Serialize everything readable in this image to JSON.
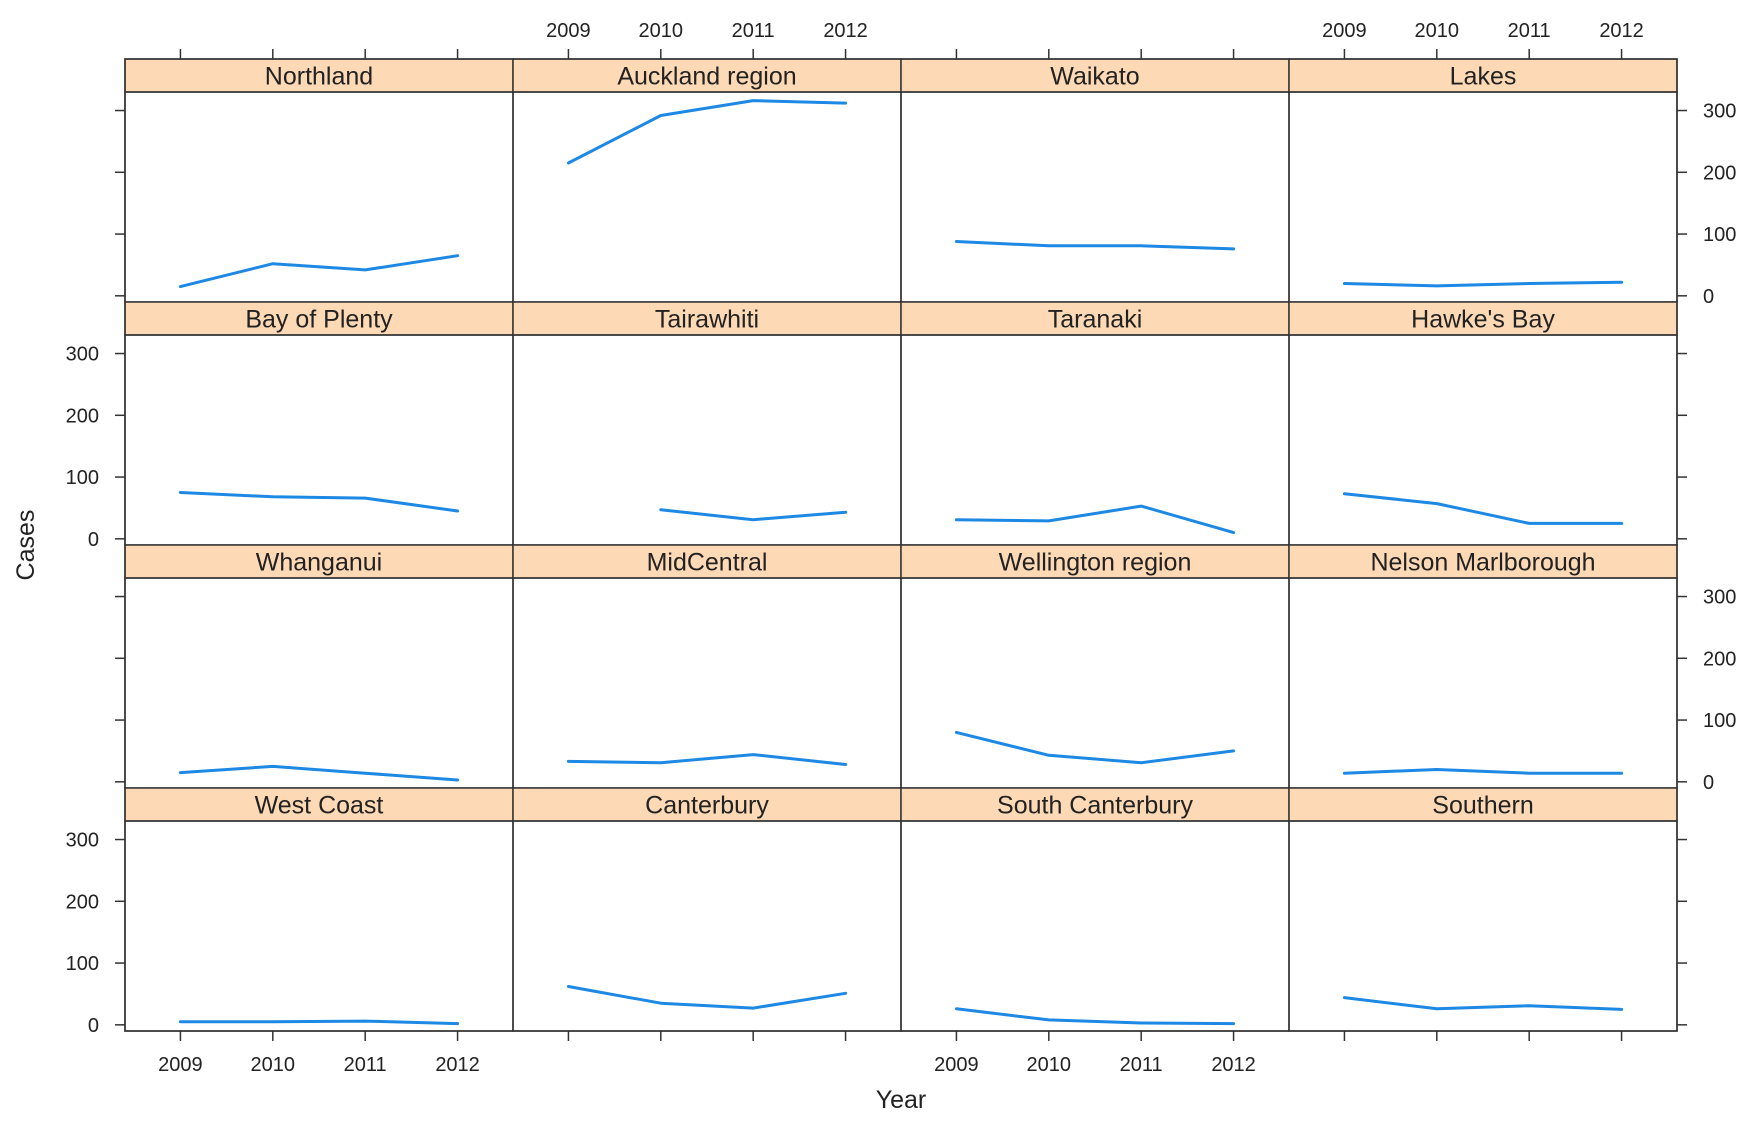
{
  "chart_data": {
    "type": "line",
    "layout": "lattice 4x4 small multiples",
    "xlabel": "Year",
    "ylabel": "Cases",
    "x": [
      2009,
      2010,
      2011,
      2012
    ],
    "x_ticks": [
      "2009",
      "2010",
      "2011",
      "2012"
    ],
    "y_ticks": [
      "0",
      "100",
      "200",
      "300"
    ],
    "ylim": [
      -10,
      330
    ],
    "grid": false,
    "line_color": "#1E88E5",
    "strip_color": "#FDD9B5",
    "panels": [
      {
        "name": "Northland",
        "values": [
          15,
          52,
          42,
          65
        ]
      },
      {
        "name": "Auckland region",
        "values": [
          215,
          292,
          316,
          312
        ]
      },
      {
        "name": "Waikato",
        "values": [
          88,
          81,
          81,
          76
        ]
      },
      {
        "name": "Lakes",
        "values": [
          20,
          16,
          20,
          22
        ]
      },
      {
        "name": "Bay of Plenty",
        "values": [
          75,
          68,
          66,
          45
        ]
      },
      {
        "name": "Tairawhiti",
        "values": [
          null,
          47,
          31,
          43
        ]
      },
      {
        "name": "Taranaki",
        "values": [
          31,
          29,
          53,
          10
        ]
      },
      {
        "name": "Hawke's Bay",
        "values": [
          73,
          57,
          25,
          25
        ]
      },
      {
        "name": "Whanganui",
        "values": [
          15,
          25,
          14,
          3
        ]
      },
      {
        "name": "MidCentral",
        "values": [
          33,
          31,
          44,
          28
        ]
      },
      {
        "name": "Wellington region",
        "values": [
          80,
          43,
          31,
          50
        ]
      },
      {
        "name": "Nelson Marlborough",
        "values": [
          14,
          20,
          14,
          14
        ]
      },
      {
        "name": "West Coast",
        "values": [
          5,
          5,
          6,
          2
        ]
      },
      {
        "name": "Canterbury",
        "values": [
          62,
          35,
          27,
          51
        ]
      },
      {
        "name": "South Canterbury",
        "values": [
          26,
          8,
          3,
          2
        ]
      },
      {
        "name": "Southern",
        "values": [
          44,
          26,
          31,
          25
        ]
      }
    ]
  }
}
